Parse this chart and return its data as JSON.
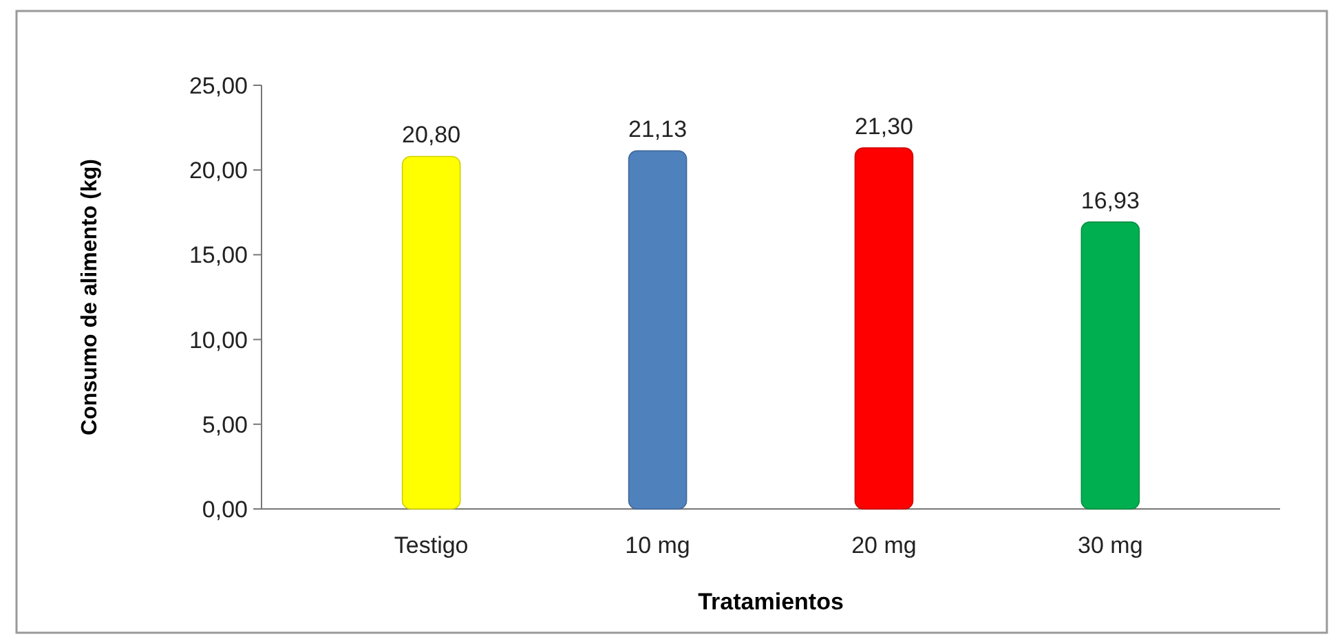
{
  "chart_data": {
    "type": "bar",
    "xlabel": "Tratamientos",
    "ylabel": "Consumo de alimento (kg)",
    "categories": [
      "Testigo",
      "10 mg",
      "20 mg",
      "30 mg"
    ],
    "values": [
      20.8,
      21.13,
      21.3,
      16.93
    ],
    "colors": [
      "#ffff00",
      "#4f81bd",
      "#ff0000",
      "#00b050"
    ],
    "value_labels": [
      "20,80",
      "21,13",
      "21,30",
      "16,93"
    ],
    "ylim": [
      0,
      25
    ],
    "yticks": [
      {
        "value": 0,
        "label": "0,00"
      },
      {
        "value": 5,
        "label": "5,00"
      },
      {
        "value": 10,
        "label": "10,00"
      },
      {
        "value": 15,
        "label": "15,00"
      },
      {
        "value": 20,
        "label": "20,00"
      },
      {
        "value": 25,
        "label": "25,00"
      }
    ],
    "grid": false
  }
}
